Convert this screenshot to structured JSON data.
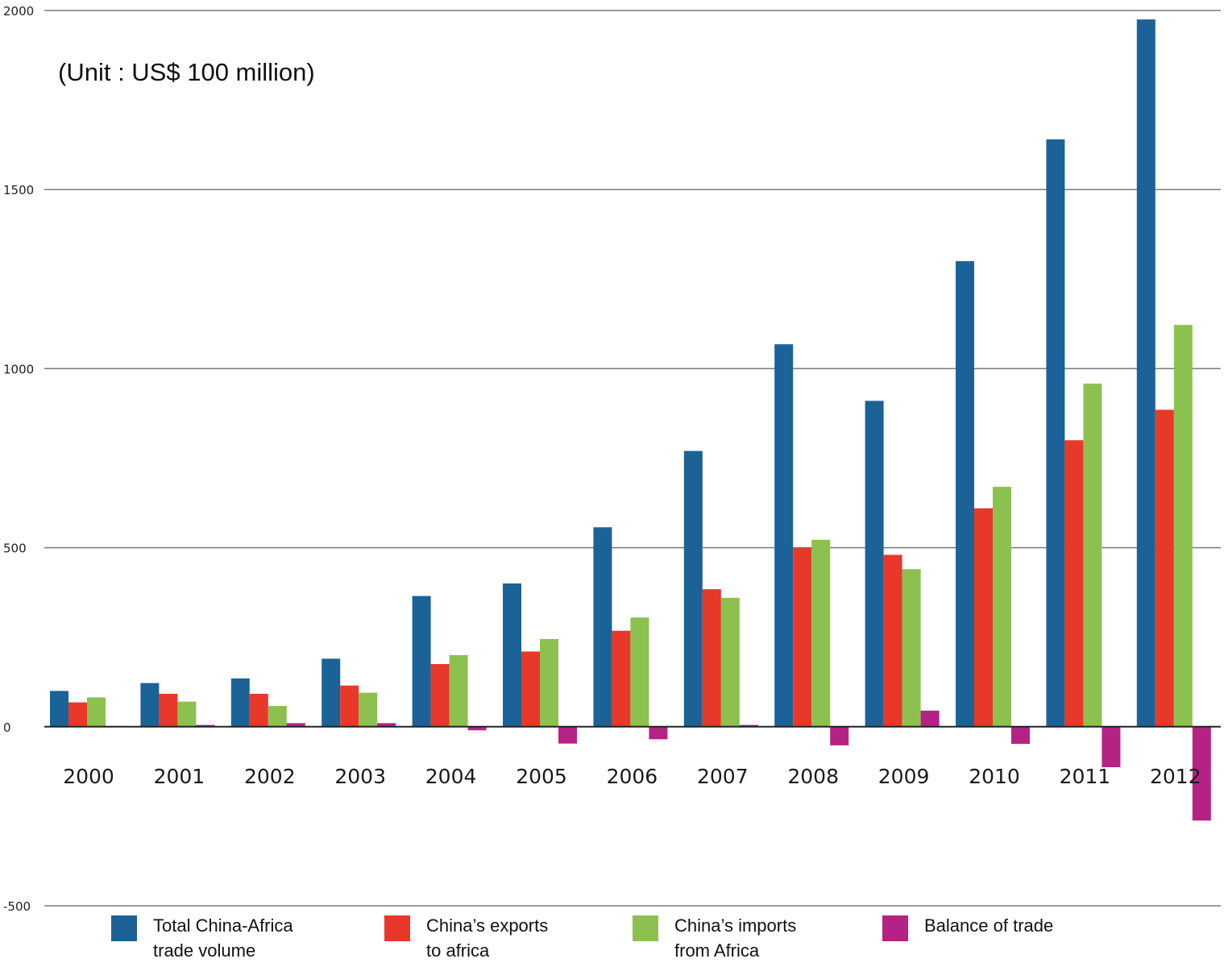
{
  "chart_data": {
    "type": "bar",
    "title": "",
    "unit_note": "(Unit : US$ 100 million)",
    "xlabel": "",
    "ylabel": "",
    "ylim": [
      -500,
      2000
    ],
    "yticks": [
      "2000",
      "1500",
      "1000",
      "500",
      "0",
      "-500"
    ],
    "ytick_values": [
      2000,
      1500,
      1000,
      500,
      0,
      -500
    ],
    "grid": true,
    "legend_position": "bottom",
    "categories": [
      "2000",
      "2001",
      "2002",
      "2003",
      "2004",
      "2005",
      "2006",
      "2007",
      "2008",
      "2009",
      "2010",
      "2011",
      "2012"
    ],
    "series": [
      {
        "name": "Total China-Africa\ntrade volume",
        "color": "#1b6396",
        "values": [
          100,
          122,
          135,
          190,
          365,
          400,
          557,
          770,
          1068,
          910,
          1300,
          1640,
          1975
        ]
      },
      {
        "name": "China’s exports\nto africa",
        "color": "#e8382a",
        "values": [
          68,
          92,
          92,
          115,
          175,
          210,
          268,
          384,
          500,
          480,
          610,
          800,
          885
        ]
      },
      {
        "name": "China’s imports\nfrom Africa",
        "color": "#8dc14f",
        "values": [
          82,
          70,
          58,
          95,
          200,
          245,
          305,
          360,
          522,
          440,
          670,
          958,
          1122
        ]
      },
      {
        "name": "Balance of trade",
        "color": "#b42384",
        "values": [
          2,
          5,
          10,
          10,
          -10,
          -47,
          -35,
          5,
          -52,
          45,
          -48,
          -113,
          -262
        ]
      }
    ]
  }
}
